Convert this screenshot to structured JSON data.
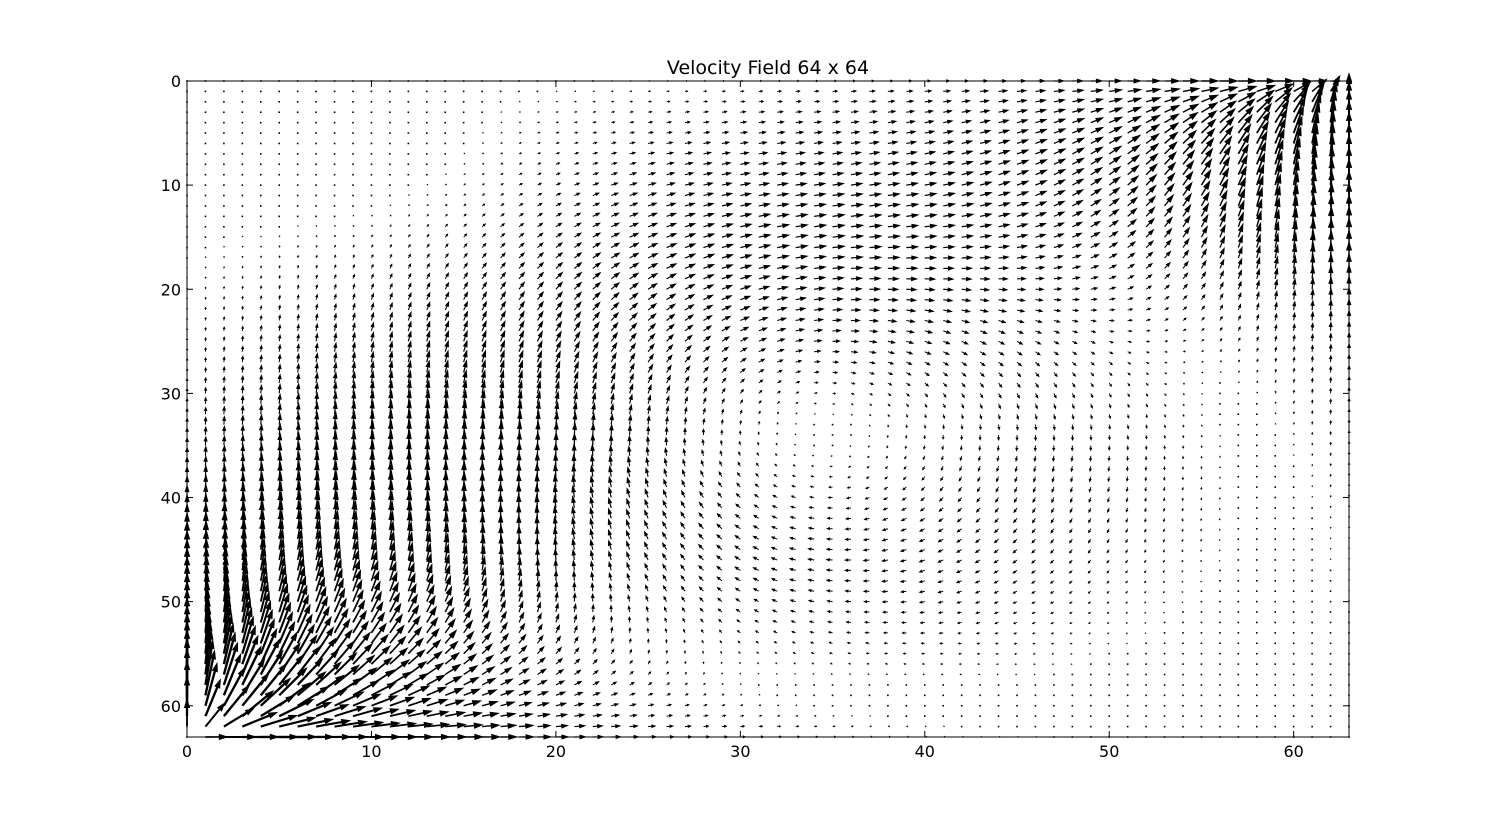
{
  "chart_data": {
    "type": "quiver",
    "title": "Velocity Field 64 x 64",
    "xlabel": "",
    "ylabel": "",
    "grid_size": [
      64,
      64
    ],
    "xlim": [
      0,
      63
    ],
    "ylim": [
      63,
      0
    ],
    "y_inverted": true,
    "grid": false,
    "x_ticks": [
      "0",
      "10",
      "20",
      "30",
      "40",
      "50",
      "60"
    ],
    "y_ticks": [
      "0",
      "10",
      "20",
      "30",
      "40",
      "50",
      "60"
    ],
    "arrow_color": "#000000",
    "flow_description": "lid-driven cavity style circulation; strongest velocities near lower-left and upper-right corners",
    "sample_vectors": [
      {
        "x": 0,
        "y": 63,
        "u": 0.9,
        "v": -1.0
      },
      {
        "x": 2,
        "y": 62,
        "u": 1.2,
        "v": -0.9
      },
      {
        "x": 8,
        "y": 61,
        "u": 1.0,
        "v": -0.15
      },
      {
        "x": 5,
        "y": 40,
        "u": 0.02,
        "v": 0.55
      },
      {
        "x": 20,
        "y": 42,
        "u": 0.35,
        "v": 0.0
      },
      {
        "x": 32,
        "y": 28,
        "u": 0.0,
        "v": 0.35
      },
      {
        "x": 40,
        "y": 14,
        "u": 0.3,
        "v": 0.0
      },
      {
        "x": 55,
        "y": 14,
        "u": -0.05,
        "v": -0.65
      },
      {
        "x": 61,
        "y": 5,
        "u": -0.15,
        "v": -0.9
      },
      {
        "x": 62,
        "y": 1,
        "u": -0.6,
        "v": -0.5
      },
      {
        "x": 50,
        "y": 50,
        "u": 0.0,
        "v": -0.05
      },
      {
        "x": 10,
        "y": 5,
        "u": 0.0,
        "v": 0.0
      }
    ]
  }
}
